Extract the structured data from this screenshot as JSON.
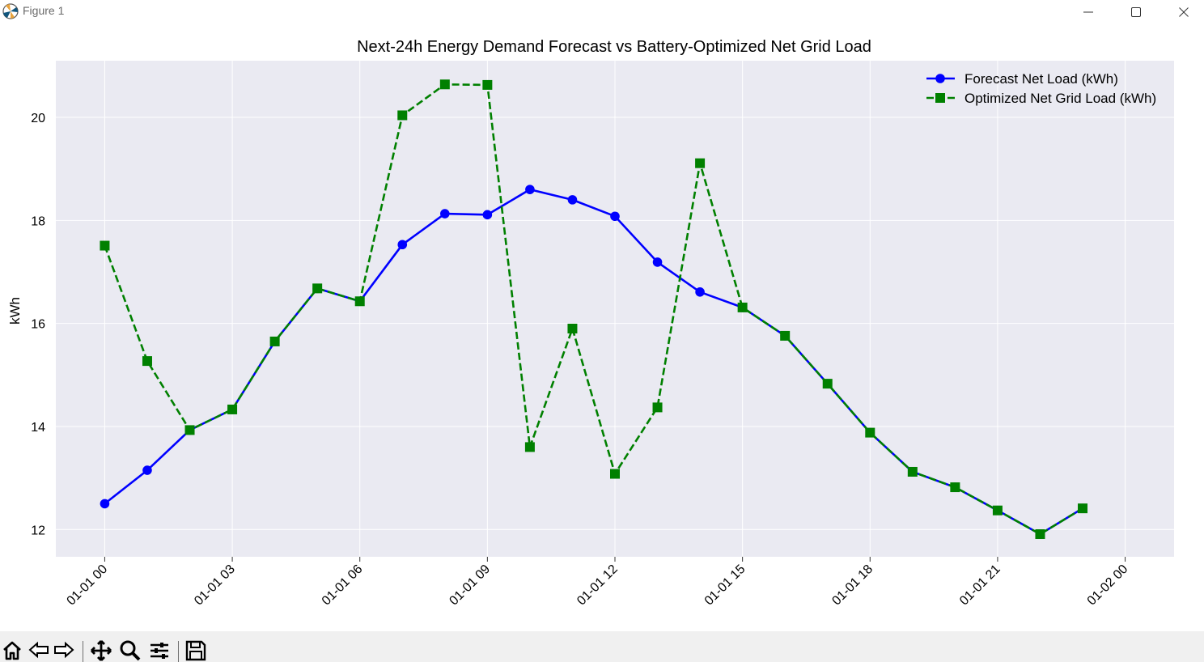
{
  "window": {
    "title": "Figure 1",
    "controls": {
      "minimize": "minimize-icon",
      "maximize": "maximize-icon",
      "close": "close-icon"
    }
  },
  "toolbar": {
    "buttons": [
      "home-icon",
      "back-icon",
      "forward-icon",
      "pan-icon",
      "zoom-icon",
      "configure-subplots-icon",
      "save-icon"
    ]
  },
  "colors": {
    "axes_bg": "#EAEAF2",
    "grid": "#ffffff",
    "forecast": "#0000FF",
    "optimized": "#008000",
    "toolbar_bg": "#f0f0f0"
  },
  "chart_data": {
    "type": "line",
    "title": "Next-24h Energy Demand Forecast vs Battery-Optimized Net Grid Load",
    "xlabel": "",
    "ylabel": "kWh",
    "x": [
      "01-01 00",
      "01-01 01",
      "01-01 02",
      "01-01 03",
      "01-01 04",
      "01-01 05",
      "01-01 06",
      "01-01 07",
      "01-01 08",
      "01-01 09",
      "01-01 10",
      "01-01 11",
      "01-01 12",
      "01-01 13",
      "01-01 14",
      "01-01 15",
      "01-01 16",
      "01-01 17",
      "01-01 18",
      "01-01 19",
      "01-01 20",
      "01-01 21",
      "01-01 22",
      "01-01 23"
    ],
    "x_ticks": [
      "01-01 00",
      "01-01 03",
      "01-01 06",
      "01-01 09",
      "01-01 12",
      "01-01 15",
      "01-01 18",
      "01-01 21",
      "01-02 00"
    ],
    "x_range_hours": [
      -1.15,
      25.15
    ],
    "y_ticks": [
      "12",
      "14",
      "16",
      "18",
      "20"
    ],
    "ylim": [
      11.47,
      21.1
    ],
    "grid": true,
    "legend_position": "top-right",
    "series": [
      {
        "name": "Forecast Net Load (kWh)",
        "color": "#0000FF",
        "linestyle": "solid",
        "marker": "circle",
        "values": [
          12.5,
          13.15,
          13.93,
          14.33,
          15.65,
          16.68,
          16.43,
          17.53,
          18.13,
          18.11,
          18.6,
          18.4,
          18.08,
          17.19,
          16.61,
          16.31,
          15.76,
          14.83,
          13.88,
          13.12,
          12.82,
          12.37,
          11.91,
          12.41
        ]
      },
      {
        "name": "Optimized Net Grid Load (kWh)",
        "color": "#008000",
        "linestyle": "dashed",
        "marker": "square",
        "values": [
          17.51,
          15.27,
          13.93,
          14.33,
          15.65,
          16.68,
          16.43,
          20.04,
          20.64,
          20.63,
          13.6,
          15.9,
          13.08,
          14.37,
          19.11,
          16.31,
          15.76,
          14.83,
          13.88,
          13.12,
          12.82,
          12.37,
          11.91,
          12.41
        ]
      }
    ]
  }
}
